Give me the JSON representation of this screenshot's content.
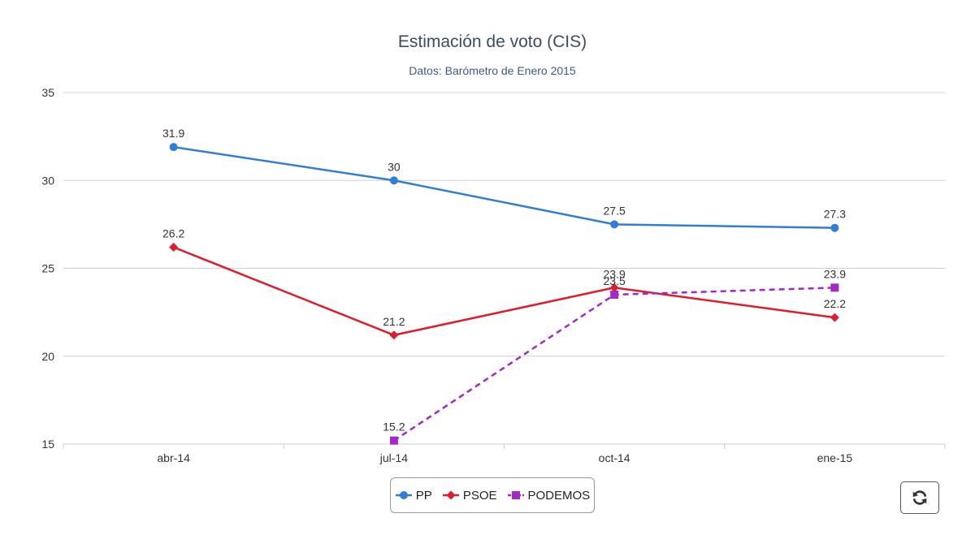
{
  "chart_data": {
    "type": "line",
    "title": "Estimación de voto (CIS)",
    "subtitle": "Datos: Barómetro de Enero 2015",
    "categories": [
      "abr-14",
      "jul-14",
      "oct-14",
      "ene-15"
    ],
    "ylim": [
      15,
      35
    ],
    "yticks": [
      "35",
      "30",
      "25",
      "20",
      "15"
    ],
    "grid": true,
    "legend_position": "bottom-center",
    "series": [
      {
        "name": "PP",
        "color": "#2f7ed8",
        "marker": "circle",
        "dashed": false,
        "values": [
          31.9,
          30,
          27.5,
          27.3
        ],
        "labels": [
          "31.9",
          "30",
          "27.5",
          "27.3"
        ]
      },
      {
        "name": "PSOE",
        "color": "#e01b2b",
        "marker": "diamond",
        "dashed": false,
        "values": [
          26.2,
          21.2,
          23.9,
          22.2
        ],
        "labels": [
          "26.2",
          "21.2",
          "23.9",
          "22.2"
        ]
      },
      {
        "name": "PODEMOS",
        "color": "#a428c7",
        "marker": "square",
        "dashed": true,
        "values": [
          null,
          15.2,
          23.5,
          23.9
        ],
        "labels": [
          null,
          "15.2",
          "23.5",
          "23.9"
        ]
      }
    ]
  },
  "controls": {
    "refresh_icon": "refresh-icon"
  }
}
